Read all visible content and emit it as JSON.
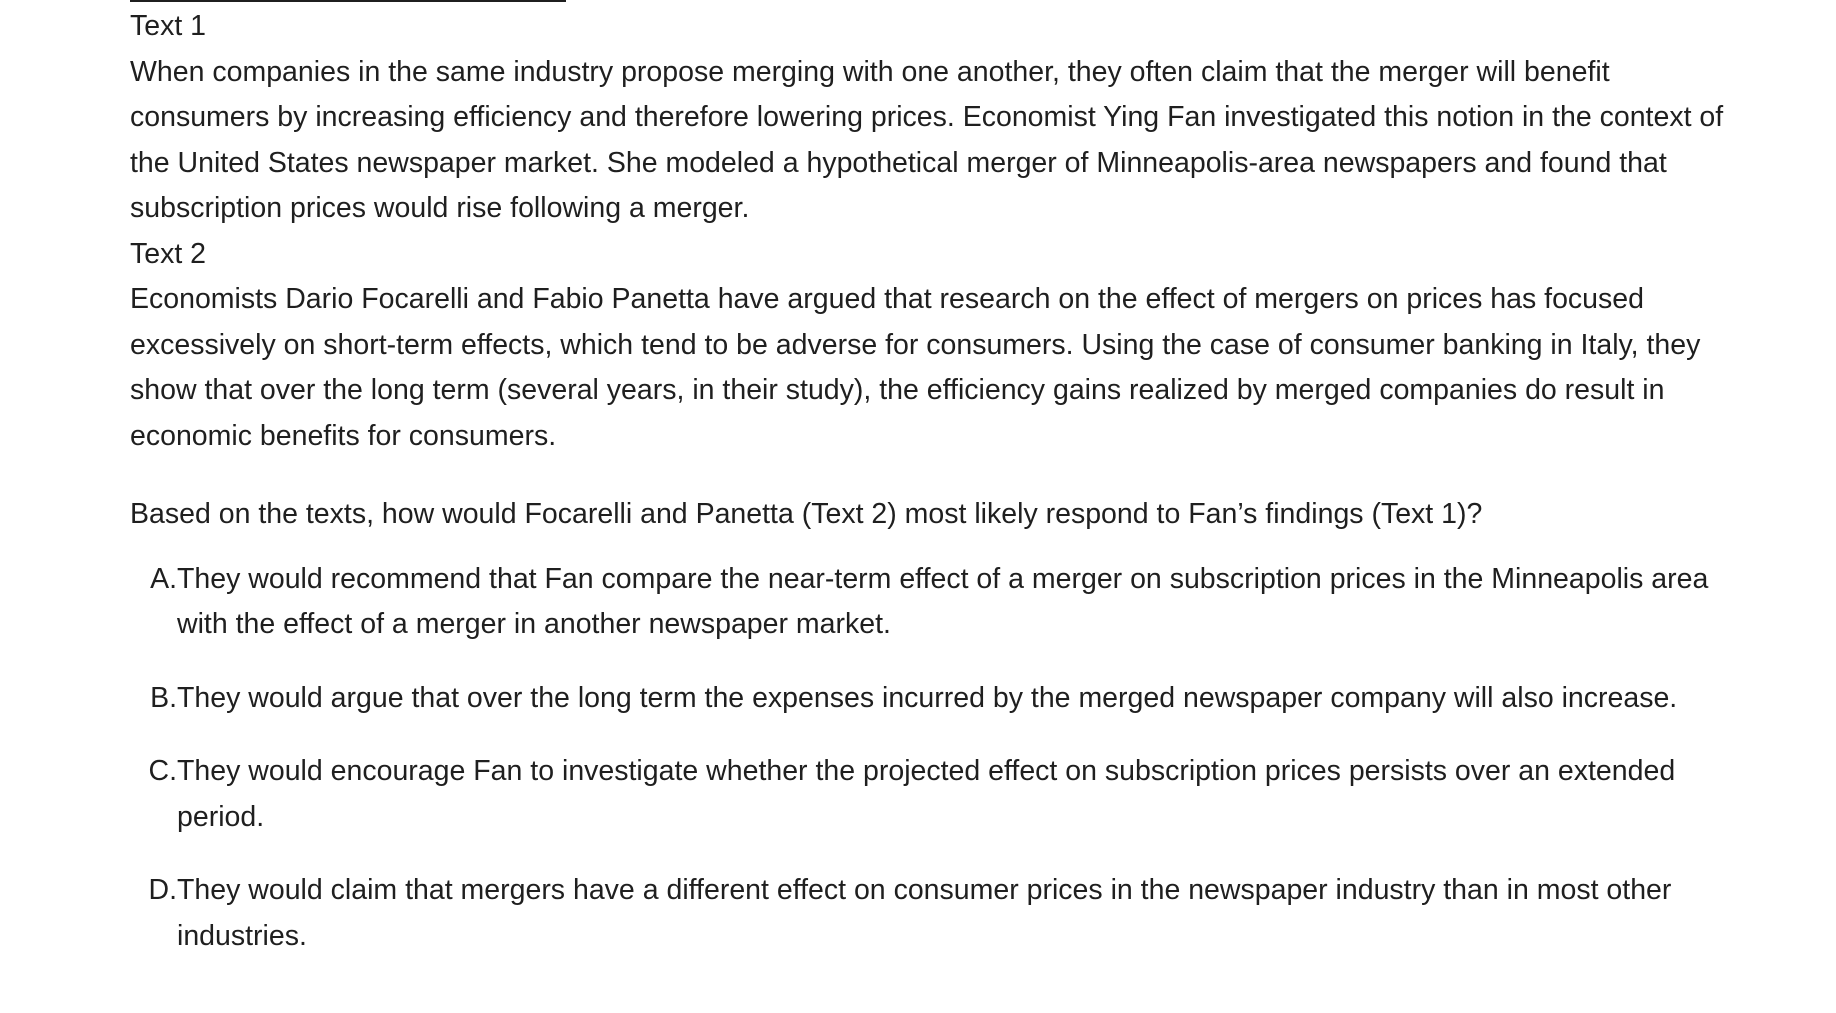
{
  "text1": {
    "label": "Text 1",
    "body": "When companies in the same industry propose merging with one another, they often claim that the merger will benefit consumers by increasing efficiency and therefore lowering prices. Economist Ying Fan investigated this notion in the context of the United States newspaper market. She modeled a hypothetical merger of Minneapolis-area newspapers and found that subscription prices would rise following a merger."
  },
  "text2": {
    "label": "Text 2",
    "body": "Economists Dario Focarelli and Fabio Panetta have argued that research on the effect of mergers on prices has focused excessively on short-term effects, which tend to be adverse for consumers. Using the case of consumer banking in Italy, they show that over the long term (several years, in their study), the efficiency gains realized by merged companies do result in economic benefits for consumers."
  },
  "question": "Based on the texts, how would Focarelli and Panetta (Text 2) most likely respond to Fan’s findings (Text 1)?",
  "options": [
    {
      "letter": "A.",
      "text": "They would recommend that Fan compare the near-term effect of a merger on subscription prices in the Minneapolis area with the effect of a merger in another newspaper market."
    },
    {
      "letter": "B.",
      "text": "They would argue that over the long term the expenses incurred by the merged newspaper company will also increase."
    },
    {
      "letter": "C.",
      "text": "They would encourage Fan to investigate whether the projected effect on subscription prices persists over an extended period."
    },
    {
      "letter": "D.",
      "text": "They would claim that mergers have a different effect on consumer prices in the newspaper industry than in most other industries."
    }
  ]
}
